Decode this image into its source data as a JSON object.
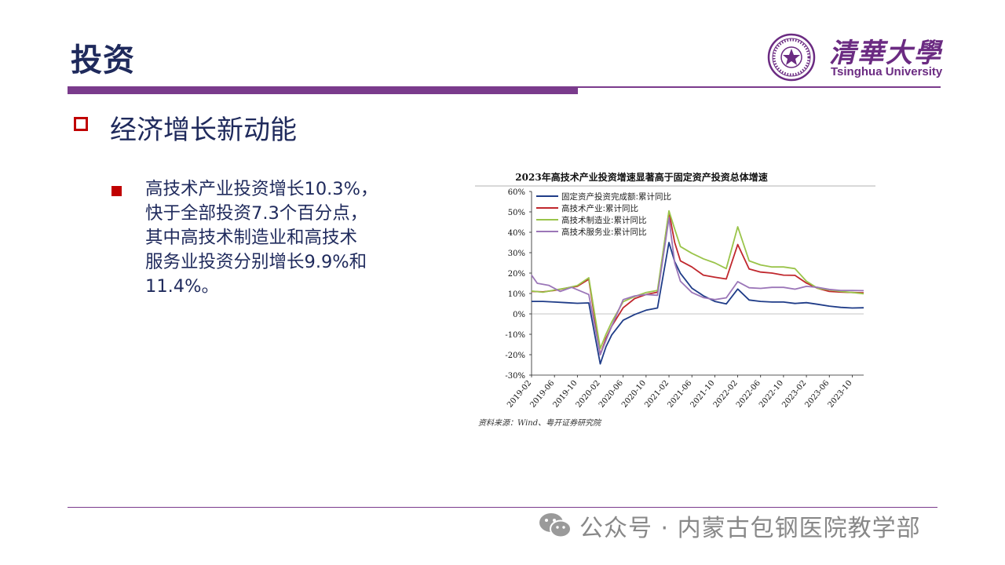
{
  "header": {
    "title": "投资",
    "logo_cn": "清華大學",
    "logo_en": "Tsinghua University",
    "seal_text": "清華大學 1911 UNIVERSITY"
  },
  "section": {
    "title": "经济增长新动能"
  },
  "bullet": {
    "lines": [
      "高技术产业投资增长10.3%，",
      "快于全部投资7.3个百分点，",
      "其中高技术制造业和高技术",
      "服务业投资分别增长9.9%和",
      "11.4%。"
    ]
  },
  "watermark": {
    "text": "公众号 · 内蒙古包钢医院教学部"
  },
  "colors": {
    "navy": "#1f2a5c",
    "purple": "#7a3b8c",
    "red": "#c00000"
  },
  "chart_data": {
    "type": "line",
    "title": "2023年高技术产业投资增速显著高于固定资产投资总体增速",
    "source": "资料来源：Wind、粤开证券研究院",
    "ylim": [
      -30,
      60
    ],
    "yticks": [
      "60%",
      "50%",
      "40%",
      "30%",
      "20%",
      "10%",
      "0%",
      "-10%",
      "-20%",
      "-30%"
    ],
    "xticks": [
      "2019-02",
      "2019-06",
      "2019-10",
      "2020-02",
      "2020-06",
      "2020-10",
      "2021-02",
      "2021-06",
      "2021-10",
      "2022-02",
      "2022-06",
      "2022-10",
      "2023-02",
      "2023-06",
      "2023-10"
    ],
    "legend_position": "top-left",
    "x_range": [
      "2019-02",
      "2023-12"
    ],
    "series": [
      {
        "name": "固定资产投资完成额:累计同比",
        "color": "#1f3c88",
        "points": [
          [
            "2019-02",
            6.1
          ],
          [
            "2019-04",
            6.1
          ],
          [
            "2019-06",
            5.8
          ],
          [
            "2019-08",
            5.5
          ],
          [
            "2019-10",
            5.2
          ],
          [
            "2019-12",
            5.4
          ],
          [
            "2020-02",
            -24.5
          ],
          [
            "2020-03",
            -16.1
          ],
          [
            "2020-04",
            -10.3
          ],
          [
            "2020-06",
            -3.1
          ],
          [
            "2020-08",
            -0.3
          ],
          [
            "2020-10",
            1.8
          ],
          [
            "2020-12",
            2.9
          ],
          [
            "2021-02",
            35.0
          ],
          [
            "2021-03",
            25.6
          ],
          [
            "2021-04",
            19.9
          ],
          [
            "2021-06",
            12.6
          ],
          [
            "2021-08",
            8.9
          ],
          [
            "2021-10",
            6.1
          ],
          [
            "2021-12",
            4.9
          ],
          [
            "2022-02",
            12.2
          ],
          [
            "2022-04",
            6.8
          ],
          [
            "2022-06",
            6.1
          ],
          [
            "2022-08",
            5.8
          ],
          [
            "2022-10",
            5.8
          ],
          [
            "2022-12",
            5.1
          ],
          [
            "2023-02",
            5.5
          ],
          [
            "2023-04",
            4.7
          ],
          [
            "2023-06",
            3.8
          ],
          [
            "2023-08",
            3.2
          ],
          [
            "2023-10",
            2.9
          ],
          [
            "2023-12",
            3.0
          ]
        ]
      },
      {
        "name": "高技术产业:累计同比",
        "color": "#c0272d",
        "points": [
          [
            "2019-02",
            11.0
          ],
          [
            "2019-04",
            10.8
          ],
          [
            "2019-06",
            11.5
          ],
          [
            "2019-08",
            12.6
          ],
          [
            "2019-10",
            13.5
          ],
          [
            "2019-12",
            17.0
          ],
          [
            "2020-02",
            -20.0
          ],
          [
            "2020-03",
            -12.0
          ],
          [
            "2020-04",
            -6.0
          ],
          [
            "2020-06",
            3.0
          ],
          [
            "2020-08",
            7.5
          ],
          [
            "2020-10",
            9.5
          ],
          [
            "2020-12",
            10.6
          ],
          [
            "2021-02",
            50.0
          ],
          [
            "2021-03",
            35.0
          ],
          [
            "2021-04",
            26.0
          ],
          [
            "2021-06",
            23.0
          ],
          [
            "2021-08",
            19.0
          ],
          [
            "2021-10",
            18.0
          ],
          [
            "2021-12",
            17.1
          ],
          [
            "2022-02",
            34.0
          ],
          [
            "2022-04",
            22.0
          ],
          [
            "2022-06",
            20.5
          ],
          [
            "2022-08",
            20.0
          ],
          [
            "2022-10",
            19.0
          ],
          [
            "2022-12",
            18.9
          ],
          [
            "2023-02",
            15.1
          ],
          [
            "2023-04",
            12.5
          ],
          [
            "2023-06",
            11.0
          ],
          [
            "2023-08",
            10.7
          ],
          [
            "2023-10",
            10.5
          ],
          [
            "2023-12",
            10.3
          ]
        ]
      },
      {
        "name": "高技术制造业:累计同比",
        "color": "#9ac44a",
        "points": [
          [
            "2019-02",
            11.2
          ],
          [
            "2019-04",
            10.6
          ],
          [
            "2019-06",
            11.7
          ],
          [
            "2019-08",
            12.6
          ],
          [
            "2019-10",
            13.9
          ],
          [
            "2019-12",
            17.7
          ],
          [
            "2020-02",
            -17.0
          ],
          [
            "2020-03",
            -10.0
          ],
          [
            "2020-04",
            -4.0
          ],
          [
            "2020-06",
            6.0
          ],
          [
            "2020-08",
            8.5
          ],
          [
            "2020-10",
            10.5
          ],
          [
            "2020-12",
            11.5
          ],
          [
            "2021-02",
            50.5
          ],
          [
            "2021-03",
            41.6
          ],
          [
            "2021-04",
            33.0
          ],
          [
            "2021-06",
            29.7
          ],
          [
            "2021-08",
            27.0
          ],
          [
            "2021-10",
            25.0
          ],
          [
            "2021-12",
            22.2
          ],
          [
            "2022-02",
            42.7
          ],
          [
            "2022-04",
            26.0
          ],
          [
            "2022-06",
            24.0
          ],
          [
            "2022-08",
            23.0
          ],
          [
            "2022-10",
            23.0
          ],
          [
            "2022-12",
            22.2
          ],
          [
            "2023-02",
            16.0
          ],
          [
            "2023-04",
            12.5
          ],
          [
            "2023-06",
            11.8
          ],
          [
            "2023-08",
            11.0
          ],
          [
            "2023-10",
            10.5
          ],
          [
            "2023-12",
            9.9
          ]
        ]
      },
      {
        "name": "高技术服务业:累计同比",
        "color": "#9b76b8",
        "points": [
          [
            "2019-02",
            19.0
          ],
          [
            "2019-03",
            15.0
          ],
          [
            "2019-05",
            14.0
          ],
          [
            "2019-07",
            11.0
          ],
          [
            "2019-09",
            13.0
          ],
          [
            "2019-12",
            9.5
          ],
          [
            "2020-02",
            -20.0
          ],
          [
            "2020-03",
            -13.0
          ],
          [
            "2020-04",
            -6.0
          ],
          [
            "2020-06",
            7.0
          ],
          [
            "2020-08",
            8.8
          ],
          [
            "2020-10",
            9.5
          ],
          [
            "2020-12",
            9.1
          ],
          [
            "2021-02",
            47.0
          ],
          [
            "2021-03",
            25.0
          ],
          [
            "2021-04",
            16.0
          ],
          [
            "2021-06",
            10.5
          ],
          [
            "2021-08",
            8.0
          ],
          [
            "2021-10",
            7.0
          ],
          [
            "2021-12",
            7.9
          ],
          [
            "2022-02",
            15.8
          ],
          [
            "2022-04",
            12.8
          ],
          [
            "2022-06",
            12.5
          ],
          [
            "2022-08",
            13.0
          ],
          [
            "2022-10",
            13.0
          ],
          [
            "2022-12",
            12.1
          ],
          [
            "2023-02",
            13.5
          ],
          [
            "2023-04",
            13.0
          ],
          [
            "2023-06",
            12.0
          ],
          [
            "2023-08",
            11.5
          ],
          [
            "2023-10",
            11.5
          ],
          [
            "2023-12",
            11.4
          ]
        ]
      }
    ]
  }
}
